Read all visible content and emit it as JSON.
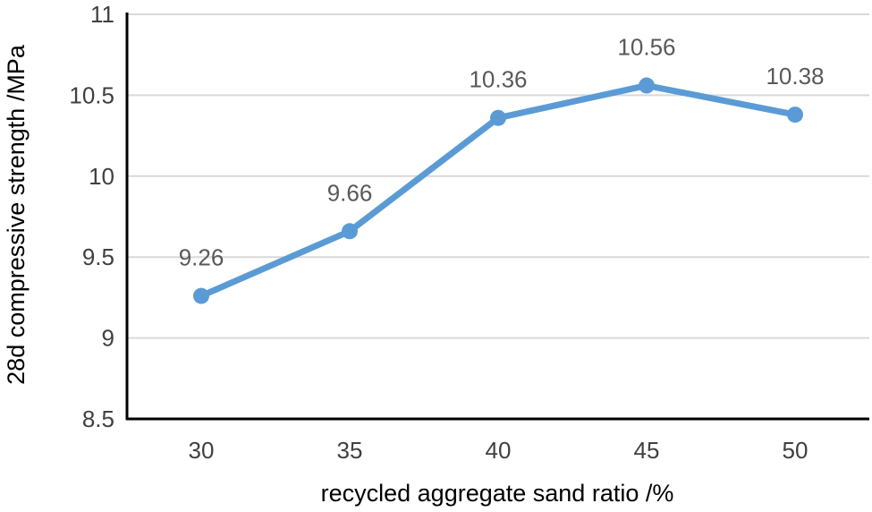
{
  "chart_data": {
    "type": "line",
    "title": "",
    "xlabel": "recycled aggregate sand ratio /%",
    "ylabel": "28d compressive strength /MPa",
    "categories": [
      "30",
      "35",
      "40",
      "45",
      "50"
    ],
    "series": [
      {
        "values": [
          9.26,
          9.66,
          10.36,
          10.56,
          10.38
        ],
        "labels": [
          "9.26",
          "9.66",
          "10.36",
          "10.56",
          "10.38"
        ],
        "color": "#5b9bd5"
      }
    ],
    "ylim": [
      8.5,
      11
    ],
    "yticks": [
      8.5,
      9,
      9.5,
      10,
      10.5,
      11
    ],
    "ytick_labels": [
      "8.5",
      "9",
      "9.5",
      "10",
      "10.5",
      "11"
    ],
    "grid": true,
    "gridColor": "#d9d9d9",
    "axisColor": "#000000",
    "legend": "none"
  }
}
